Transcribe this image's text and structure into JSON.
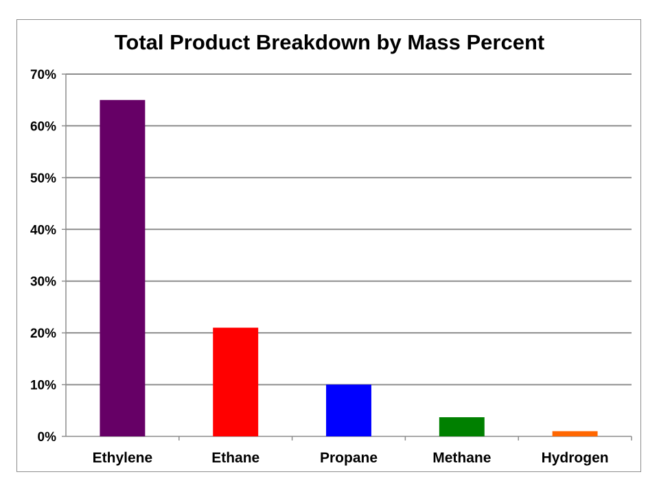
{
  "chart_data": {
    "type": "bar",
    "title": "Total Product Breakdown by Mass Percent",
    "xlabel": "",
    "ylabel": "",
    "categories": [
      "Ethylene",
      "Ethane",
      "Propane",
      "Methane",
      "Hydrogen"
    ],
    "values": [
      65,
      21,
      10,
      3.7,
      1
    ],
    "colors": [
      "#660066",
      "#ff0000",
      "#0000ff",
      "#008000",
      "#ff6600"
    ],
    "ylim": [
      0,
      70
    ],
    "y_ticks": [
      0,
      10,
      20,
      30,
      40,
      50,
      60,
      70
    ],
    "y_tick_labels": [
      "0%",
      "10%",
      "20%",
      "30%",
      "40%",
      "50%",
      "60%",
      "70%"
    ],
    "grid": true,
    "legend": "none"
  }
}
